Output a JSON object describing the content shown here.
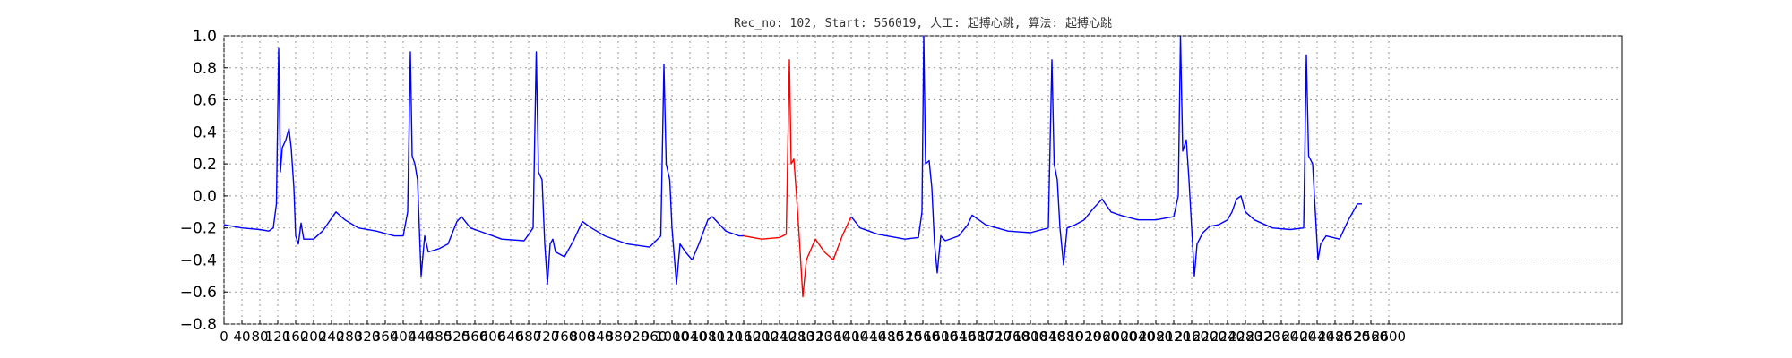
{
  "chart_data": {
    "type": "line",
    "title": "Rec_no: 102, Start: 556019, 人工: 起搏心跳, 算法: 起搏心跳",
    "xlabel": "",
    "ylabel": "",
    "xlim": [
      0,
      3120
    ],
    "ylim": [
      -0.8,
      1.0
    ],
    "grid": true,
    "legend": "none",
    "y_ticks": [
      "1.0",
      "0.8",
      "0.6",
      "0.4",
      "0.2",
      "0.0",
      "−0.2",
      "−0.4",
      "−0.6",
      "−0.8"
    ],
    "y_tick_values": [
      1.0,
      0.8,
      0.6,
      0.4,
      0.2,
      0.0,
      -0.2,
      -0.4,
      -0.6,
      -0.8
    ],
    "x_tick_values": [
      0,
      40,
      80,
      120,
      160,
      200,
      240,
      280,
      320,
      360,
      400,
      440,
      480,
      520,
      560,
      600,
      640,
      680,
      720,
      760,
      800,
      840,
      880,
      920,
      960,
      1000,
      1040,
      1080,
      1120,
      1160,
      1200,
      1240,
      1280,
      1320,
      1360,
      1400,
      1440,
      1480,
      1520,
      1560,
      1600,
      1640,
      1680,
      1720,
      1760,
      1800,
      1840,
      1880,
      1920,
      1960,
      2000,
      2040,
      2080,
      2120,
      2160,
      2200,
      2240,
      2280,
      2320,
      2360,
      2400,
      2440,
      2480,
      2520,
      2560,
      2600
    ],
    "series": [
      {
        "color": "#0000ff",
        "segment": "before",
        "points": [
          [
            0,
            -0.18
          ],
          [
            40,
            -0.2
          ],
          [
            80,
            -0.21
          ],
          [
            100,
            -0.22
          ],
          [
            110,
            -0.2
          ],
          [
            117,
            -0.05
          ],
          [
            122,
            0.92
          ],
          [
            126,
            0.15
          ],
          [
            130,
            0.3
          ],
          [
            138,
            0.35
          ],
          [
            145,
            0.42
          ],
          [
            150,
            0.3
          ],
          [
            156,
            0.05
          ],
          [
            160,
            -0.25
          ],
          [
            166,
            -0.3
          ],
          [
            172,
            -0.17
          ],
          [
            178,
            -0.27
          ],
          [
            200,
            -0.27
          ],
          [
            220,
            -0.22
          ],
          [
            240,
            -0.14
          ],
          [
            250,
            -0.1
          ],
          [
            270,
            -0.15
          ],
          [
            300,
            -0.2
          ],
          [
            340,
            -0.22
          ],
          [
            380,
            -0.25
          ],
          [
            400,
            -0.25
          ],
          [
            410,
            -0.1
          ],
          [
            416,
            0.9
          ],
          [
            420,
            0.25
          ],
          [
            426,
            0.2
          ],
          [
            432,
            0.1
          ],
          [
            436,
            -0.2
          ],
          [
            440,
            -0.5
          ],
          [
            448,
            -0.25
          ],
          [
            456,
            -0.35
          ],
          [
            480,
            -0.33
          ],
          [
            500,
            -0.3
          ],
          [
            520,
            -0.16
          ],
          [
            530,
            -0.13
          ],
          [
            550,
            -0.2
          ],
          [
            580,
            -0.23
          ],
          [
            620,
            -0.27
          ],
          [
            670,
            -0.28
          ],
          [
            690,
            -0.2
          ],
          [
            697,
            0.9
          ],
          [
            702,
            0.15
          ],
          [
            710,
            0.1
          ],
          [
            716,
            -0.3
          ],
          [
            722,
            -0.55
          ],
          [
            728,
            -0.3
          ],
          [
            734,
            -0.27
          ],
          [
            740,
            -0.35
          ],
          [
            760,
            -0.38
          ],
          [
            780,
            -0.28
          ],
          [
            800,
            -0.16
          ],
          [
            820,
            -0.2
          ],
          [
            850,
            -0.25
          ],
          [
            900,
            -0.3
          ],
          [
            950,
            -0.32
          ],
          [
            975,
            -0.25
          ],
          [
            982,
            0.82
          ],
          [
            987,
            0.2
          ],
          [
            995,
            0.1
          ],
          [
            1000,
            -0.2
          ],
          [
            1010,
            -0.55
          ],
          [
            1018,
            -0.3
          ],
          [
            1030,
            -0.35
          ],
          [
            1045,
            -0.4
          ],
          [
            1060,
            -0.3
          ],
          [
            1080,
            -0.15
          ],
          [
            1090,
            -0.13
          ],
          [
            1120,
            -0.22
          ],
          [
            1150,
            -0.25
          ],
          [
            1160,
            -0.25
          ]
        ]
      },
      {
        "color": "#ff0000",
        "segment": "highlight",
        "points": [
          [
            1160,
            -0.25
          ],
          [
            1200,
            -0.27
          ],
          [
            1240,
            -0.26
          ],
          [
            1255,
            -0.24
          ],
          [
            1262,
            0.85
          ],
          [
            1266,
            0.2
          ],
          [
            1272,
            0.23
          ],
          [
            1278,
            0.0
          ],
          [
            1285,
            -0.3
          ],
          [
            1292,
            -0.63
          ],
          [
            1300,
            -0.4
          ],
          [
            1320,
            -0.27
          ],
          [
            1340,
            -0.35
          ],
          [
            1360,
            -0.4
          ],
          [
            1380,
            -0.25
          ],
          [
            1400,
            -0.13
          ]
        ]
      },
      {
        "color": "#0000ff",
        "segment": "after",
        "points": [
          [
            1400,
            -0.13
          ],
          [
            1420,
            -0.2
          ],
          [
            1460,
            -0.24
          ],
          [
            1520,
            -0.27
          ],
          [
            1550,
            -0.26
          ],
          [
            1558,
            -0.1
          ],
          [
            1562,
            1.0
          ],
          [
            1566,
            0.2
          ],
          [
            1574,
            0.22
          ],
          [
            1580,
            0.05
          ],
          [
            1586,
            -0.3
          ],
          [
            1592,
            -0.48
          ],
          [
            1600,
            -0.25
          ],
          [
            1610,
            -0.28
          ],
          [
            1640,
            -0.25
          ],
          [
            1660,
            -0.18
          ],
          [
            1670,
            -0.12
          ],
          [
            1700,
            -0.18
          ],
          [
            1750,
            -0.22
          ],
          [
            1800,
            -0.23
          ],
          [
            1840,
            -0.2
          ],
          [
            1848,
            0.85
          ],
          [
            1853,
            0.2
          ],
          [
            1860,
            0.1
          ],
          [
            1866,
            -0.2
          ],
          [
            1874,
            -0.43
          ],
          [
            1882,
            -0.2
          ],
          [
            1900,
            -0.18
          ],
          [
            1920,
            -0.15
          ],
          [
            1940,
            -0.08
          ],
          [
            1960,
            -0.02
          ],
          [
            1980,
            -0.1
          ],
          [
            2000,
            -0.12
          ],
          [
            2040,
            -0.15
          ],
          [
            2080,
            -0.15
          ],
          [
            2120,
            -0.13
          ],
          [
            2130,
            0.0
          ],
          [
            2135,
            1.0
          ],
          [
            2140,
            0.28
          ],
          [
            2148,
            0.35
          ],
          [
            2154,
            0.1
          ],
          [
            2160,
            -0.2
          ],
          [
            2166,
            -0.5
          ],
          [
            2172,
            -0.3
          ],
          [
            2185,
            -0.23
          ],
          [
            2200,
            -0.19
          ],
          [
            2220,
            -0.18
          ],
          [
            2240,
            -0.15
          ],
          [
            2250,
            -0.1
          ],
          [
            2260,
            -0.02
          ],
          [
            2270,
            0.0
          ],
          [
            2280,
            -0.1
          ],
          [
            2300,
            -0.15
          ],
          [
            2340,
            -0.2
          ],
          [
            2380,
            -0.21
          ],
          [
            2410,
            -0.2
          ],
          [
            2416,
            0.88
          ],
          [
            2421,
            0.25
          ],
          [
            2430,
            0.2
          ],
          [
            2436,
            -0.1
          ],
          [
            2442,
            -0.4
          ],
          [
            2448,
            -0.3
          ],
          [
            2460,
            -0.25
          ],
          [
            2490,
            -0.27
          ],
          [
            2510,
            -0.15
          ],
          [
            2530,
            -0.05
          ],
          [
            2540,
            -0.05
          ]
        ]
      }
    ]
  }
}
